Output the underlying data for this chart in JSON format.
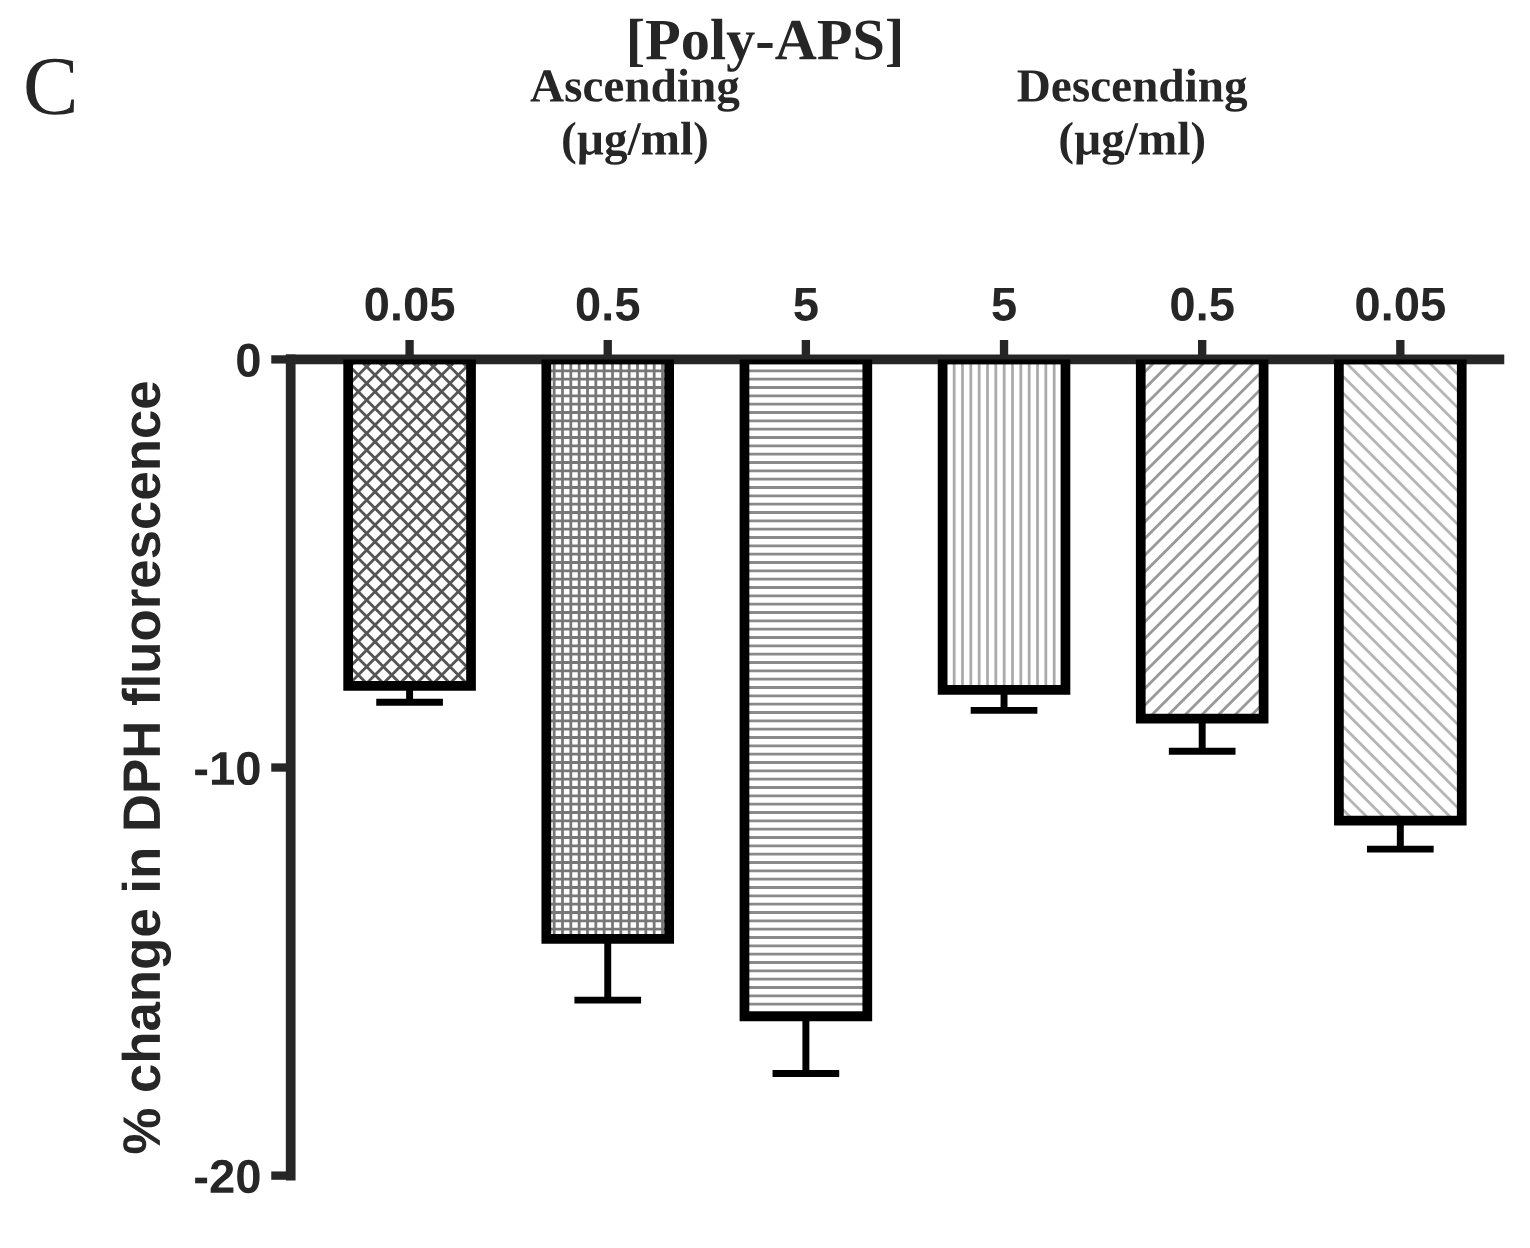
{
  "chart_data": {
    "type": "bar",
    "title": "[Poly-APS]",
    "ylabel": "% change in DPH fluorescence",
    "categories": [
      "0.05",
      "0.5",
      "5",
      "5",
      "0.5",
      "0.05"
    ],
    "values": [
      -8.0,
      -14.2,
      -16.1,
      -8.1,
      -8.8,
      -11.3
    ],
    "errors": [
      0.4,
      1.5,
      1.4,
      0.5,
      0.8,
      0.7
    ],
    "colors": [
      "#555555",
      "#777777",
      "#8a8a8a",
      "#aaaaaa",
      "#999999",
      "#b5b5b5"
    ],
    "ylim": [
      -20,
      0
    ],
    "yticks": [
      -20,
      -10,
      0
    ],
    "grid": false,
    "legend": false,
    "annotations": [
      "C",
      "Ascending\n(µg/ml)",
      "Descending\n(µg/ml)"
    ]
  }
}
